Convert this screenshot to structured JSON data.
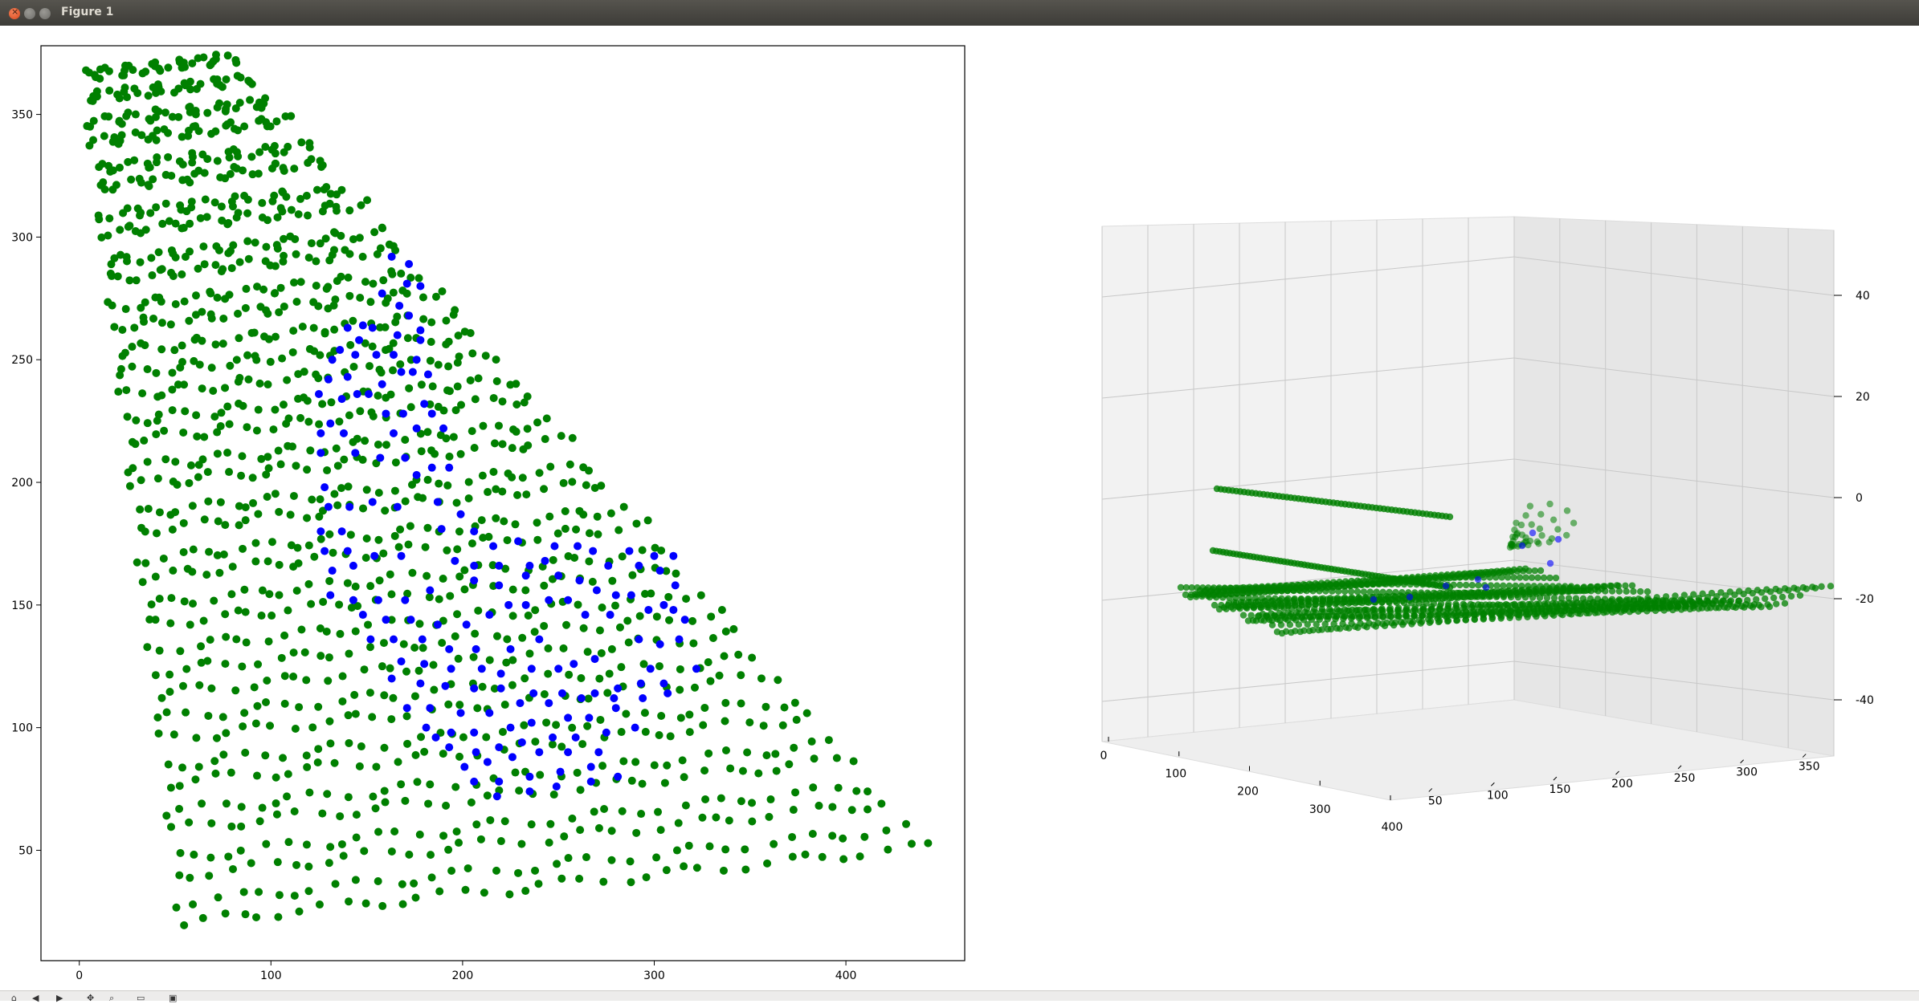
{
  "window": {
    "title": "Figure 1"
  },
  "toolbar": {
    "icons": [
      "home-icon",
      "back-icon",
      "forward-icon",
      "pan-icon",
      "zoom-icon",
      "subplots-icon",
      "save-icon"
    ]
  },
  "colors": {
    "grid_points": "#008000",
    "highlight_points": "#0000ff",
    "axes_frame": "#000000",
    "pane_left": "#f2f2f2",
    "pane_right": "#e6e6e6"
  },
  "chart_data": [
    {
      "type": "scatter",
      "title": "",
      "xlabel": "",
      "ylabel": "",
      "xlim": [
        -20,
        462
      ],
      "ylim": [
        5,
        378
      ],
      "xticks": [
        0,
        100,
        200,
        300,
        400
      ],
      "yticks": [
        50,
        100,
        150,
        200,
        250,
        300,
        350
      ],
      "grid": false,
      "point_grid": {
        "rows": 38,
        "cols": 38,
        "corners": {
          "top_left": [
            2,
            366
          ],
          "top_right": [
            81,
            373
          ],
          "bottom_left": [
            53,
            20
          ],
          "bottom_right": [
            442,
            51
          ]
        }
      },
      "series": [
        {
          "color": "#008000",
          "values_desc": "dense warped lattice of points filling the quadrilateral between the corners"
        },
        {
          "color": "#0000ff",
          "points": [
            [
              163,
              292
            ],
            [
              172,
              289
            ],
            [
              171,
              281
            ],
            [
              178,
              280
            ],
            [
              158,
              277
            ],
            [
              167,
              272
            ],
            [
              172,
              268
            ],
            [
              148,
              264
            ],
            [
              140,
              263
            ],
            [
              153,
              263
            ],
            [
              178,
              262
            ],
            [
              166,
              260
            ],
            [
              146,
              258
            ],
            [
              178,
              258
            ],
            [
              136,
              254
            ],
            [
              144,
              252
            ],
            [
              155,
              252
            ],
            [
              164,
              252
            ],
            [
              176,
              250
            ],
            [
              132,
              250
            ],
            [
              168,
              245
            ],
            [
              174,
              245
            ],
            [
              182,
              244
            ],
            [
              140,
              243
            ],
            [
              130,
              242
            ],
            [
              158,
              240
            ],
            [
              145,
              236
            ],
            [
              125,
              236
            ],
            [
              137,
              234
            ],
            [
              151,
              236
            ],
            [
              180,
              232
            ],
            [
              160,
              228
            ],
            [
              169,
              228
            ],
            [
              184,
              228
            ],
            [
              131,
              224
            ],
            [
              126,
              220
            ],
            [
              138,
              220
            ],
            [
              164,
              220
            ],
            [
              176,
              222
            ],
            [
              190,
              222
            ],
            [
              126,
              212
            ],
            [
              144,
              212
            ],
            [
              157,
              210
            ],
            [
              170,
              210
            ],
            [
              184,
              206
            ],
            [
              128,
              198
            ],
            [
              176,
              203
            ],
            [
              193,
              206
            ],
            [
              130,
              190
            ],
            [
              141,
              190
            ],
            [
              153,
              192
            ],
            [
              166,
              190
            ],
            [
              187,
              192
            ],
            [
              199,
              187
            ],
            [
              126,
              180
            ],
            [
              137,
              180
            ],
            [
              189,
              181
            ],
            [
              206,
              180
            ],
            [
              128,
              172
            ],
            [
              140,
              172
            ],
            [
              154,
              170
            ],
            [
              168,
              170
            ],
            [
              216,
              174
            ],
            [
              229,
              176
            ],
            [
              248,
              174
            ],
            [
              260,
              174
            ],
            [
              132,
              164
            ],
            [
              143,
              166
            ],
            [
              196,
              168
            ],
            [
              206,
              166
            ],
            [
              219,
              166
            ],
            [
              235,
              166
            ],
            [
              243,
              168
            ],
            [
              268,
              172
            ],
            [
              287,
              172
            ],
            [
              300,
              170
            ],
            [
              310,
              170
            ],
            [
              131,
              154
            ],
            [
              143,
              152
            ],
            [
              156,
              152
            ],
            [
              170,
              152
            ],
            [
              183,
              156
            ],
            [
              206,
              160
            ],
            [
              219,
              158
            ],
            [
              233,
              162
            ],
            [
              250,
              162
            ],
            [
              261,
              160
            ],
            [
              276,
              166
            ],
            [
              292,
              166
            ],
            [
              303,
              164
            ],
            [
              311,
              158
            ],
            [
              224,
              150
            ],
            [
              233,
              150
            ],
            [
              245,
              152
            ],
            [
              255,
              152
            ],
            [
              270,
              156
            ],
            [
              280,
              154
            ],
            [
              288,
              154
            ],
            [
              305,
              150
            ],
            [
              148,
              146
            ],
            [
              160,
              144
            ],
            [
              173,
              144
            ],
            [
              187,
              142
            ],
            [
              202,
              142
            ],
            [
              214,
              146
            ],
            [
              264,
              146
            ],
            [
              277,
              146
            ],
            [
              297,
              148
            ],
            [
              310,
              148
            ],
            [
              152,
              136
            ],
            [
              164,
              136
            ],
            [
              179,
              136
            ],
            [
              193,
              132
            ],
            [
              207,
              132
            ],
            [
              225,
              132
            ],
            [
              240,
              136
            ],
            [
              292,
              136
            ],
            [
              303,
              134
            ],
            [
              313,
              136
            ],
            [
              316,
              144
            ],
            [
              168,
              127
            ],
            [
              180,
              126
            ],
            [
              194,
              124
            ],
            [
              210,
              124
            ],
            [
              220,
              122
            ],
            [
              236,
              124
            ],
            [
              250,
              124
            ],
            [
              258,
              126
            ],
            [
              269,
              128
            ],
            [
              298,
              124
            ],
            [
              322,
              124
            ],
            [
              163,
              120
            ],
            [
              178,
              118
            ],
            [
              191,
              117
            ],
            [
              206,
              116
            ],
            [
              220,
              116
            ],
            [
              237,
              114
            ],
            [
              252,
              114
            ],
            [
              269,
              114
            ],
            [
              281,
              116
            ],
            [
              293,
              118
            ],
            [
              305,
              118
            ],
            [
              171,
              108
            ],
            [
              183,
              108
            ],
            [
              199,
              106
            ],
            [
              214,
              106
            ],
            [
              230,
              110
            ],
            [
              245,
              110
            ],
            [
              262,
              112
            ],
            [
              279,
              112
            ],
            [
              294,
              112
            ],
            [
              307,
              114
            ],
            [
              181,
              100
            ],
            [
              194,
              98
            ],
            [
              206,
              98
            ],
            [
              225,
              100
            ],
            [
              236,
              102
            ],
            [
              255,
              104
            ],
            [
              266,
              104
            ],
            [
              280,
              108
            ],
            [
              193,
              92
            ],
            [
              207,
              90
            ],
            [
              219,
              92
            ],
            [
              231,
              94
            ],
            [
              247,
              96
            ],
            [
              259,
              96
            ],
            [
              275,
              98
            ],
            [
              290,
              100
            ],
            [
              201,
              84
            ],
            [
              213,
              86
            ],
            [
              226,
              88
            ],
            [
              240,
              90
            ],
            [
              255,
              90
            ],
            [
              271,
              90
            ],
            [
              206,
              78
            ],
            [
              219,
              78
            ],
            [
              235,
              80
            ],
            [
              251,
              82
            ],
            [
              267,
              84
            ],
            [
              186,
              96
            ],
            [
              218,
              72
            ],
            [
              235,
              74
            ],
            [
              249,
              76
            ],
            [
              267,
              78
            ],
            [
              281,
              80
            ]
          ]
        }
      ]
    },
    {
      "type": "scatter3d",
      "title": "",
      "x_ticks": [
        0,
        100,
        200,
        300,
        400
      ],
      "y_ticks": [
        50,
        100,
        150,
        200,
        250,
        300,
        350
      ],
      "z_ticks": [
        -40,
        -20,
        0,
        20,
        40
      ],
      "grid": true,
      "series": [
        {
          "color": "#008000",
          "values_desc": "dense sheet of points around z ≈ -15 to -25"
        },
        {
          "color": "#008000",
          "values_desc": "two elevated lines of points, one near z ≈ 0 and one near z ≈ -8"
        },
        {
          "color": "#0000ff",
          "values_desc": "sparse points mixed into the upper-right cluster"
        }
      ]
    }
  ]
}
